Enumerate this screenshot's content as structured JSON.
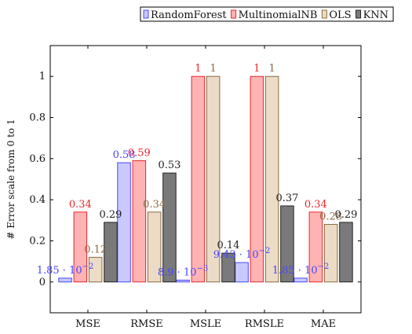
{
  "chart_data": {
    "type": "bar",
    "title": "",
    "xlabel": "",
    "ylabel": "# Error scale from 0 to 1",
    "ylim": [
      -0.15,
      1.15
    ],
    "yticks": [
      {
        "value": 0,
        "label": "0"
      },
      {
        "value": 0.2,
        "label": "0.2"
      },
      {
        "value": 0.4,
        "label": "0.4"
      },
      {
        "value": 0.6,
        "label": "0.6"
      },
      {
        "value": 0.8,
        "label": "0.8"
      },
      {
        "value": 1,
        "label": "1"
      }
    ],
    "grid": false,
    "legend_position": "top-right",
    "categories": [
      "MSE",
      "RMSE",
      "MSLE",
      "RMSLE",
      "MAE"
    ],
    "series": [
      {
        "name": "RandomForest",
        "color": "#4747ff",
        "fill": "#c9c9ff",
        "values": [
          0.0185,
          0.58,
          0.0089,
          0.0943,
          0.0185
        ],
        "labels": [
          "1.85 · 10^-2",
          "0.58",
          "8.9 · 10^-3",
          "9.43 · 10^-2",
          "1.85 · 10^-2"
        ]
      },
      {
        "name": "MultinomialNB",
        "color": "#e8262b",
        "fill": "#ffb3b3",
        "values": [
          0.34,
          0.59,
          1,
          1,
          0.34
        ],
        "labels": [
          "0.34",
          "0.59",
          "1",
          "1",
          "0.34"
        ]
      },
      {
        "name": "OLS",
        "color": "#8c6a3f",
        "fill": "#ecdcc6",
        "values": [
          0.12,
          0.34,
          1,
          1,
          0.28
        ],
        "labels": [
          "0.12",
          "0.34",
          "1",
          "1",
          "0.28"
        ]
      },
      {
        "name": "KNN",
        "color": "#222222",
        "fill": "#7a7a7a",
        "values": [
          0.29,
          0.53,
          0.14,
          0.37,
          0.29
        ],
        "labels": [
          "0.29",
          "0.53",
          "0.14",
          "0.37",
          "0.29"
        ]
      }
    ]
  }
}
